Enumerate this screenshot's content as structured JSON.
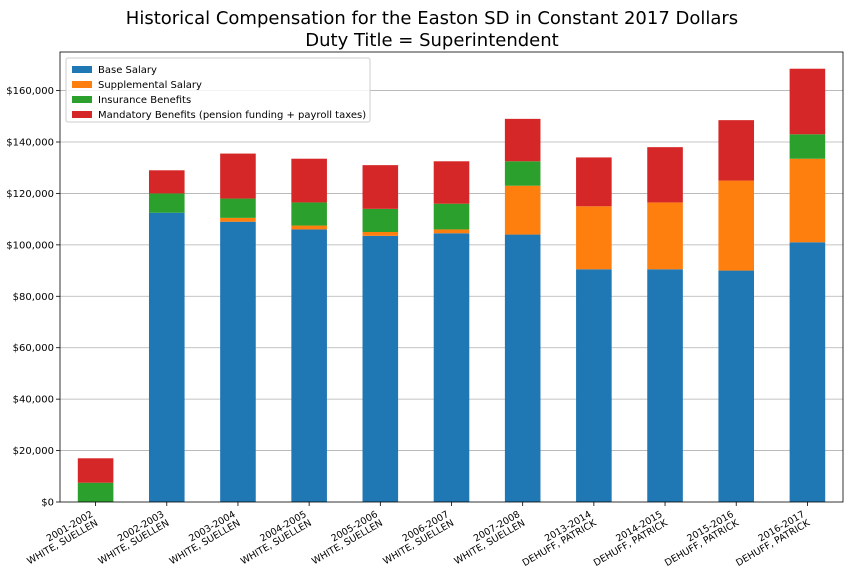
{
  "chart_data": {
    "type": "bar",
    "stacked": true,
    "title": "Historical Compensation for the Easton SD in Constant 2017 Dollars",
    "subtitle": "Duty Title = Superintendent",
    "xlabel": "",
    "ylabel": "",
    "ylim": [
      0,
      175000
    ],
    "yticks": [
      0,
      20000,
      40000,
      60000,
      80000,
      100000,
      120000,
      140000,
      160000
    ],
    "ytick_labels": [
      "$0",
      "$20,000",
      "$40,000",
      "$60,000",
      "$80,000",
      "$100,000",
      "$120,000",
      "$140,000",
      "$160,000"
    ],
    "grid": "horizontal",
    "legend_position": "top-left",
    "categories": [
      [
        "2001-2002",
        "WHITE, SUELLEN"
      ],
      [
        "2002-2003",
        "WHITE, SUELLEN"
      ],
      [
        "2003-2004",
        "WHITE, SUELLEN"
      ],
      [
        "2004-2005",
        "WHITE, SUELLEN"
      ],
      [
        "2005-2006",
        "WHITE, SUELLEN"
      ],
      [
        "2006-2007",
        "WHITE, SUELLEN"
      ],
      [
        "2007-2008",
        "WHITE, SUELLEN"
      ],
      [
        "2013-2014",
        "DEHUFF, PATRICK"
      ],
      [
        "2014-2015",
        "DEHUFF, PATRICK"
      ],
      [
        "2015-2016",
        "DEHUFF, PATRICK"
      ],
      [
        "2016-2017",
        "DEHUFF, PATRICK"
      ]
    ],
    "series": [
      {
        "name": "Base Salary",
        "color": "#1f77b4",
        "values": [
          0,
          112500,
          109000,
          106000,
          103500,
          104500,
          104000,
          90500,
          90500,
          90000,
          101000
        ]
      },
      {
        "name": "Supplemental Salary",
        "color": "#ff7f0e",
        "values": [
          0,
          0,
          1500,
          1500,
          1500,
          1500,
          19000,
          24500,
          26000,
          35000,
          32500
        ]
      },
      {
        "name": "Insurance Benefits",
        "color": "#2ca02c",
        "values": [
          7500,
          7500,
          7500,
          9000,
          9000,
          10000,
          9500,
          0,
          0,
          0,
          9500
        ]
      },
      {
        "name": "Mandatory Benefits (pension funding + payroll taxes)",
        "color": "#d62728",
        "values": [
          9500,
          9000,
          17500,
          17000,
          17000,
          16500,
          16500,
          19000,
          21500,
          23500,
          25500
        ]
      }
    ]
  }
}
